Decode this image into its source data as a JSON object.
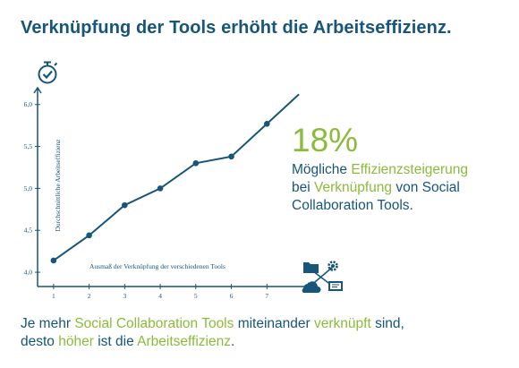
{
  "title": "Verknüpfung der Tools erhöht die Arbeitseffizienz.",
  "stat": {
    "value": "18%",
    "lines": [
      [
        {
          "t": "Mögliche ",
          "hl": false
        },
        {
          "t": "Effizienzsteigerung",
          "hl": true
        }
      ],
      [
        {
          "t": "bei ",
          "hl": false
        },
        {
          "t": "Verknüpfung",
          "hl": true
        },
        {
          "t": " von Social",
          "hl": false
        }
      ],
      [
        {
          "t": "Collaboration Tools.",
          "hl": false
        }
      ]
    ]
  },
  "footer": {
    "lines": [
      [
        {
          "t": "Je mehr ",
          "hl": false
        },
        {
          "t": "Social Collaboration Tools",
          "hl": true
        },
        {
          "t": " miteinander ",
          "hl": false
        },
        {
          "t": "verknüpft",
          "hl": true
        },
        {
          "t": " sind,",
          "hl": false
        }
      ],
      [
        {
          "t": "desto ",
          "hl": false
        },
        {
          "t": "höher",
          "hl": true
        },
        {
          "t": " ist die ",
          "hl": false
        },
        {
          "t": "Arbeitseffizienz",
          "hl": true
        },
        {
          "t": ".",
          "hl": false
        }
      ]
    ]
  },
  "icons": {
    "y_axis": "stopwatch-check-icon",
    "x_axis": "connected-tools-network-icon"
  },
  "colors": {
    "primary": "#17557a",
    "accent": "#8bbb3a",
    "axis": "#17557a"
  },
  "chart_data": {
    "type": "line",
    "x": [
      1,
      2,
      3,
      4,
      5,
      6,
      7
    ],
    "y": [
      4.14,
      4.44,
      4.8,
      5.0,
      5.3,
      5.38,
      5.77
    ],
    "xlabel": "Ausmaß der Verknüpfung der verschiedenen Tools",
    "ylabel": "Durchschnittliche Arbeitseffizienz",
    "xticks": [
      "1",
      "2",
      "3",
      "4",
      "5",
      "6",
      "7"
    ],
    "yticks": [
      "4,0",
      "4,5",
      "5,0",
      "5,5",
      "6,0"
    ],
    "ytick_values": [
      4.0,
      4.5,
      5.0,
      5.5,
      6.0
    ],
    "ylim": [
      3.83,
      6.2
    ],
    "xlim": [
      0.55,
      8.0
    ],
    "grid": false,
    "trend_extends_to_x": 7.9
  }
}
